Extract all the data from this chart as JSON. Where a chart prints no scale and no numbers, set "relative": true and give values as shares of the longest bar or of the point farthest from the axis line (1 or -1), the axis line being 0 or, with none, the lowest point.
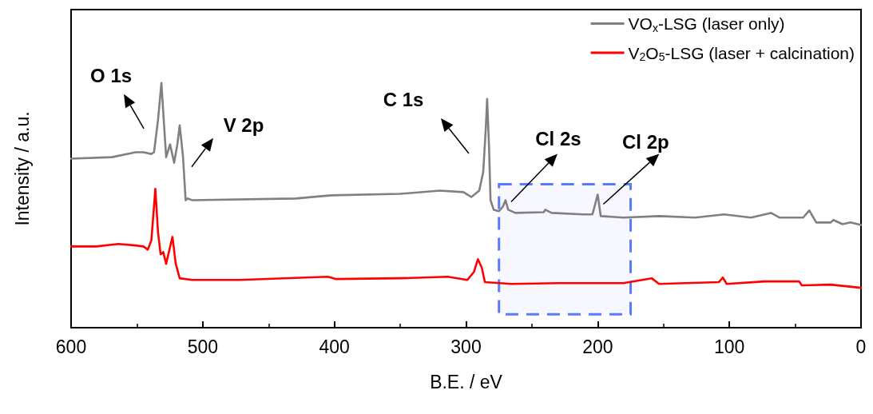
{
  "chart_data": {
    "type": "line",
    "relative": true,
    "xlabel": "B.E. / eV",
    "ylabel": "Intensity / a.u.",
    "xlim": [
      600,
      0
    ],
    "xticks": [
      600,
      500,
      400,
      300,
      200,
      100,
      0
    ],
    "grid": false,
    "legend": "top right",
    "marker": "none",
    "line_style": "solid",
    "series": [
      {
        "name": "VO$_{x}$-LSG (laser only)",
        "color": "#808080",
        "x": [
          600,
          569,
          551,
          545,
          539,
          537,
          534,
          531.4,
          529.6,
          527.8,
          524.8,
          521.7,
          519.3,
          517.5,
          515,
          513,
          511.4,
          508,
          429.5,
          411,
          401.6,
          350,
          320,
          302,
          296,
          290,
          287,
          285,
          284,
          282.6,
          281.4,
          279,
          275,
          272,
          270,
          268,
          262.6,
          241,
          239.8,
          235,
          211,
          204,
          200,
          197.7,
          180.6,
          153,
          126,
          104,
          83.6,
          68.4,
          62,
          44,
          39.3,
          34,
          23,
          21,
          14,
          8,
          0
        ],
        "values": [
          0.691,
          0.697,
          0.717,
          0.717,
          0.71,
          0.717,
          0.847,
          1,
          0.847,
          0.697,
          0.749,
          0.674,
          0.749,
          0.827,
          0.7,
          0.521,
          0.528,
          0.521,
          0.528,
          0.537,
          0.541,
          0.547,
          0.56,
          0.554,
          0.534,
          0.56,
          0.635,
          0.814,
          0.935,
          0.749,
          0.521,
          0.482,
          0.476,
          0.495,
          0.521,
          0.482,
          0.469,
          0.472,
          0.482,
          0.469,
          0.463,
          0.463,
          0.544,
          0.456,
          0.45,
          0.456,
          0.45,
          0.463,
          0.45,
          0.469,
          0.45,
          0.45,
          0.479,
          0.43,
          0.43,
          0.44,
          0.423,
          0.43,
          0.42
        ]
      },
      {
        "name": "V$_{2}$O$_{5}$-LSG (laser + calcination)",
        "color": "#ff0000",
        "x": [
          600,
          581,
          564,
          551,
          545,
          541.7,
          539,
          536,
          534,
          532,
          530,
          527.8,
          523,
          520.5,
          517.5,
          508,
          472,
          405,
          399,
          350,
          314,
          299,
          294,
          291,
          288,
          285.7,
          265.6,
          229,
          180.6,
          159,
          153.4,
          108,
          105,
          102,
          73.3,
          47,
          45,
          23,
          0
        ],
        "values": [
          0.332,
          0.332,
          0.342,
          0.336,
          0.332,
          0.319,
          0.358,
          0.567,
          0.391,
          0.3,
          0.309,
          0.261,
          0.371,
          0.261,
          0.202,
          0.195,
          0.195,
          0.208,
          0.199,
          0.202,
          0.208,
          0.195,
          0.228,
          0.28,
          0.244,
          0.186,
          0.179,
          0.182,
          0.182,
          0.202,
          0.179,
          0.186,
          0.205,
          0.179,
          0.189,
          0.189,
          0.173,
          0.176,
          0.163
        ]
      }
    ],
    "bands": [
      {
        "axis": "x",
        "from": 275,
        "to": 175,
        "color": "#5b7bff"
      }
    ],
    "annotations": [
      {
        "text": "O 1s",
        "x": 531.4,
        "y": 1
      },
      {
        "text": "V 2p",
        "x": 517.5,
        "y": 0.827
      },
      "C 1s",
      {
        "text": "Cl 2s",
        "x": 270,
        "y": 0.521
      },
      {
        "text": "Cl 2p",
        "x": 200,
        "y": 0.544
      }
    ]
  }
}
